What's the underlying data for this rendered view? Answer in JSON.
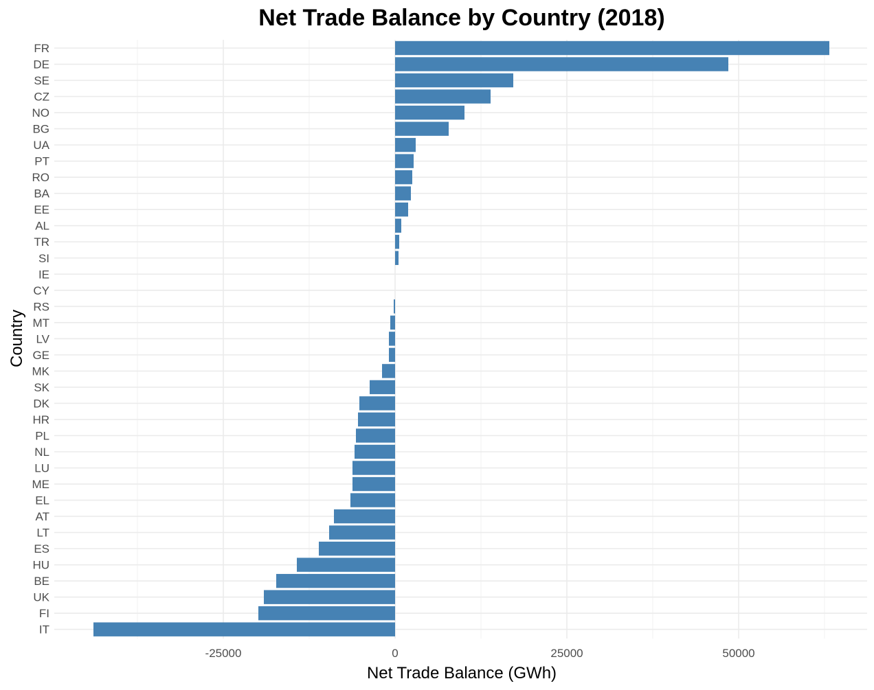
{
  "chart_data": {
    "type": "bar",
    "orientation": "horizontal",
    "title": "Net Trade Balance by Country (2018)",
    "xlabel": "Net Trade Balance (GWh)",
    "ylabel": "Country",
    "xlim": [
      -44000,
      63200
    ],
    "x_ticks": [
      -25000,
      0,
      25000,
      50000
    ],
    "x_tick_labels": [
      "-25000",
      "0",
      "25000",
      "50000"
    ],
    "bar_color": "#4682b4",
    "grid": true,
    "legend": "none",
    "categories": [
      "FR",
      "DE",
      "SE",
      "CZ",
      "NO",
      "BG",
      "UA",
      "PT",
      "RO",
      "BA",
      "EE",
      "AL",
      "TR",
      "SI",
      "IE",
      "CY",
      "RS",
      "MT",
      "LV",
      "GE",
      "MK",
      "SK",
      "DK",
      "HR",
      "PL",
      "NL",
      "LU",
      "ME",
      "EL",
      "AT",
      "LT",
      "ES",
      "HU",
      "BE",
      "UK",
      "FI",
      "IT"
    ],
    "values": [
      63200,
      48500,
      17200,
      13900,
      10100,
      7800,
      3000,
      2700,
      2500,
      2300,
      1900,
      900,
      600,
      500,
      0,
      0,
      -200,
      -700,
      -900,
      -900,
      -1900,
      -3700,
      -5200,
      -5400,
      -5700,
      -5900,
      -6200,
      -6200,
      -6500,
      -8900,
      -9600,
      -11100,
      -14300,
      -17300,
      -19100,
      -19900,
      -43900
    ]
  }
}
